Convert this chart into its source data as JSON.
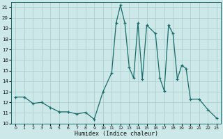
{
  "xlabel": "Humidex (Indice chaleur)",
  "background_color": "#cce8e8",
  "grid_color": "#aacccc",
  "line_color": "#1a6b6b",
  "marker_color": "#1a6b6b",
  "xlim": [
    0,
    23
  ],
  "ylim": [
    10,
    21.5
  ],
  "yticks": [
    10,
    11,
    12,
    13,
    14,
    15,
    16,
    17,
    18,
    19,
    20,
    21
  ],
  "xticks": [
    0,
    1,
    2,
    3,
    4,
    5,
    6,
    7,
    8,
    9,
    10,
    11,
    12,
    13,
    14,
    15,
    16,
    17,
    18,
    19,
    20,
    21,
    22,
    23
  ],
  "x": [
    0,
    1,
    2,
    3,
    4,
    5,
    6,
    7,
    8,
    9,
    10,
    11,
    11.5,
    12,
    12.5,
    13,
    13.5,
    14,
    14.5,
    15,
    16,
    16.5,
    17,
    17.5,
    18,
    18.5,
    19,
    19.5,
    20,
    21,
    22,
    23
  ],
  "y": [
    12.5,
    12.5,
    11.9,
    12.0,
    11.5,
    11.1,
    11.1,
    10.9,
    11.05,
    10.4,
    13.0,
    14.8,
    19.5,
    21.2,
    19.5,
    15.3,
    14.3,
    19.5,
    14.2,
    19.3,
    18.5,
    14.3,
    13.1,
    19.3,
    18.5,
    14.2,
    15.5,
    15.2,
    12.3,
    12.3,
    11.3,
    10.5
  ]
}
